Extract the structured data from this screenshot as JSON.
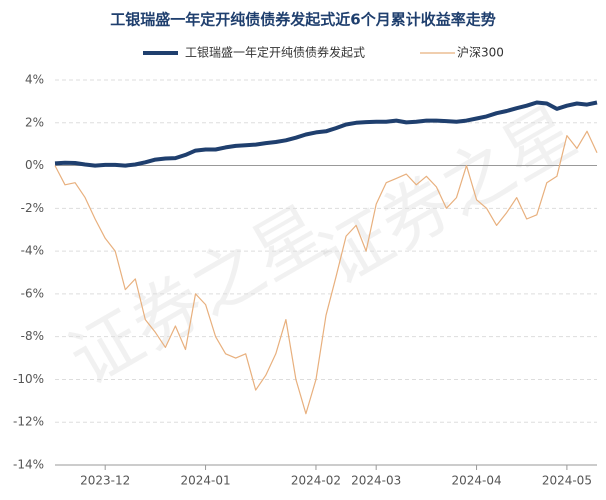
{
  "chart_data": {
    "type": "line",
    "title": "工银瑞盛一年定开纯债债券发起式近6个月累计收益率走势",
    "watermark": "证券之星",
    "categories": [
      null,
      null,
      null,
      null,
      null,
      "2023-12",
      null,
      null,
      null,
      null,
      null,
      null,
      null,
      null,
      null,
      "2024-01",
      null,
      null,
      null,
      null,
      null,
      null,
      null,
      null,
      null,
      null,
      "2024-02",
      null,
      null,
      null,
      null,
      null,
      "2024-03",
      null,
      null,
      null,
      null,
      null,
      null,
      null,
      null,
      null,
      "2024-04",
      null,
      null,
      null,
      null,
      null,
      null,
      null,
      null,
      "2024-05",
      null,
      null,
      null
    ],
    "series": [
      {
        "name": "工银瑞盛一年定开纯债债券发起式",
        "color": "#1f3f6e",
        "width": 4,
        "values": [
          0.1,
          0.13,
          0.12,
          0.05,
          0.0,
          0.03,
          0.03,
          0.0,
          0.05,
          0.15,
          0.28,
          0.33,
          0.35,
          0.5,
          0.7,
          0.75,
          0.75,
          0.85,
          0.92,
          0.95,
          0.98,
          1.05,
          1.1,
          1.18,
          1.3,
          1.45,
          1.55,
          1.6,
          1.75,
          1.92,
          2.0,
          2.03,
          2.05,
          2.05,
          2.1,
          2.02,
          2.05,
          2.1,
          2.1,
          2.08,
          2.05,
          2.1,
          2.2,
          2.3,
          2.45,
          2.55,
          2.68,
          2.8,
          2.95,
          2.9,
          2.65,
          2.8,
          2.9,
          2.85,
          2.95
        ]
      },
      {
        "name": "沪深300",
        "color": "#e8b07e",
        "width": 1.2,
        "values": [
          0,
          -0.9,
          -0.8,
          -1.5,
          -2.5,
          -3.4,
          -4.0,
          -5.8,
          -5.3,
          -7.2,
          -7.8,
          -8.5,
          -7.5,
          -8.6,
          -6.0,
          -6.5,
          -8.0,
          -8.8,
          -9.0,
          -8.8,
          -10.5,
          -9.8,
          -8.8,
          -7.2,
          -10.0,
          -11.6,
          -10.0,
          -7.0,
          -5.2,
          -3.3,
          -2.8,
          -4.0,
          -1.8,
          -0.8,
          -0.6,
          -0.4,
          -0.9,
          -0.5,
          -1.0,
          -2.0,
          -1.5,
          0.0,
          -1.6,
          -2.0,
          -2.8,
          -2.2,
          -1.5,
          -2.5,
          -2.3,
          -0.8,
          -0.5,
          1.4,
          0.8,
          1.6,
          0.6
        ]
      }
    ],
    "ylim": [
      -14,
      4
    ],
    "yticks": [
      {
        "value": -14,
        "label": "-14%"
      },
      {
        "value": -12,
        "label": "-12%"
      },
      {
        "value": -10,
        "label": "-10%"
      },
      {
        "value": -8,
        "label": "-8%"
      },
      {
        "value": -6,
        "label": "-6%"
      },
      {
        "value": -4,
        "label": "-4%"
      },
      {
        "value": -2,
        "label": "-2%"
      },
      {
        "value": 0,
        "label": "0%"
      },
      {
        "value": 2,
        "label": "2%"
      },
      {
        "value": 4,
        "label": "4%"
      }
    ],
    "grid": true
  }
}
